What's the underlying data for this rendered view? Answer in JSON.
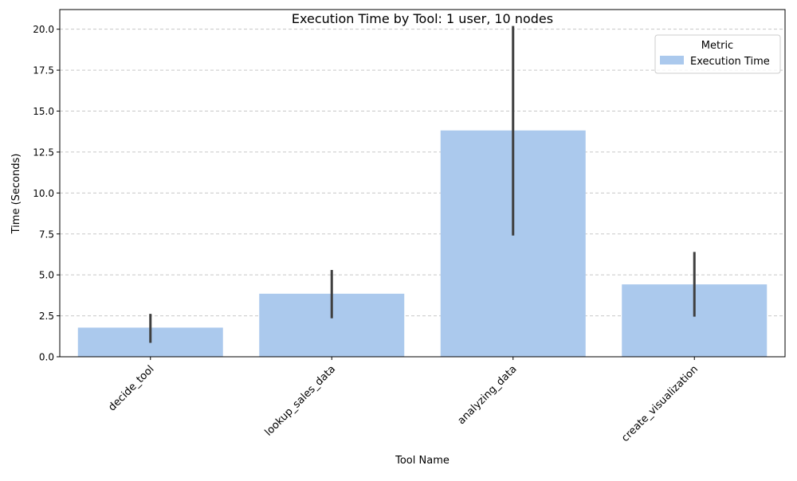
{
  "chart_data": {
    "type": "bar",
    "title": "Execution Time by Tool: 1 user, 10 nodes",
    "xlabel": "Tool Name",
    "ylabel": "Time (Seconds)",
    "categories": [
      "decide_tool",
      "lookup_sales_data",
      "analyzing_data",
      "create_visualization"
    ],
    "series": [
      {
        "name": "Execution Time",
        "color": "#abc9ed",
        "values": [
          1.78,
          3.85,
          13.82,
          4.42
        ],
        "error_low": [
          0.85,
          2.35,
          7.4,
          2.45
        ],
        "error_high": [
          2.62,
          5.3,
          20.2,
          6.4
        ]
      }
    ],
    "ylim": [
      0,
      21.2
    ],
    "yticks": [
      "0.0",
      "2.5",
      "5.0",
      "7.5",
      "10.0",
      "12.5",
      "15.0",
      "17.5",
      "20.0"
    ],
    "grid": "horizontal dashed",
    "legend": {
      "title": "Metric",
      "placement": "top-right"
    },
    "errorbar_color": "#3f3f3f"
  }
}
